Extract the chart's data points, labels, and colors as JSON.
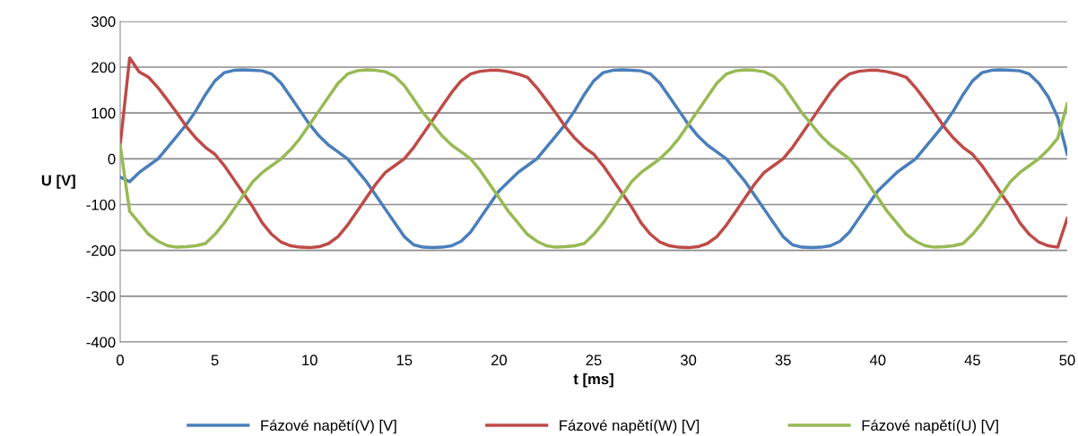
{
  "chart_data": {
    "type": "line",
    "xlabel": "t [ms]",
    "ylabel": "U [V]",
    "x": [
      0,
      0.5,
      1,
      1.5,
      2,
      2.5,
      3,
      3.5,
      4,
      4.5,
      5,
      5.5,
      6,
      6.5,
      7,
      7.5,
      8,
      8.5,
      9,
      9.5,
      10,
      10.5,
      11,
      11.5,
      12,
      12.5,
      13,
      13.5,
      14,
      14.5,
      15,
      15.5,
      16,
      16.5,
      17,
      17.5,
      18,
      18.5,
      19,
      19.5,
      20,
      20.5,
      21,
      21.5,
      22,
      22.5,
      23,
      23.5,
      24,
      24.5,
      25,
      25.5,
      26,
      26.5,
      27,
      27.5,
      28,
      28.5,
      29,
      29.5,
      30,
      30.5,
      31,
      31.5,
      32,
      32.5,
      33,
      33.5,
      34,
      34.5,
      35,
      35.5,
      36,
      36.5,
      37,
      37.5,
      38,
      38.5,
      39,
      39.5,
      40,
      40.5,
      41,
      41.5,
      42,
      42.5,
      43,
      43.5,
      44,
      44.5,
      45,
      45.5,
      46,
      46.5,
      47,
      47.5,
      48,
      48.5,
      49,
      49.5,
      50
    ],
    "series": [
      {
        "name": "Fázové napětí(V) [V]",
        "color": "#4a7ebb",
        "values": [
          -40,
          -50,
          -30,
          -15,
          0,
          25,
          50,
          75,
          105,
          140,
          170,
          188,
          193,
          194,
          193,
          192,
          185,
          165,
          135,
          105,
          75,
          50,
          30,
          15,
          0,
          -25,
          -50,
          -80,
          -110,
          -140,
          -170,
          -188,
          -193,
          -194,
          -193,
          -190,
          -180,
          -160,
          -130,
          -100,
          -70,
          -50,
          -30,
          -15,
          0,
          25,
          50,
          75,
          105,
          140,
          170,
          188,
          193,
          194,
          193,
          192,
          185,
          165,
          135,
          105,
          75,
          50,
          30,
          15,
          0,
          -25,
          -50,
          -80,
          -110,
          -140,
          -170,
          -188,
          -193,
          -194,
          -193,
          -190,
          -180,
          -160,
          -130,
          -100,
          -70,
          -50,
          -30,
          -15,
          0,
          25,
          50,
          75,
          105,
          140,
          170,
          188,
          193,
          194,
          193,
          192,
          185,
          165,
          135,
          90,
          10
        ]
      },
      {
        "name": "Fázové napětí(W) [V]",
        "color": "#be4b48",
        "values": [
          30,
          220,
          190,
          178,
          155,
          128,
          100,
          70,
          45,
          25,
          10,
          -15,
          -45,
          -75,
          -105,
          -140,
          -165,
          -182,
          -190,
          -193,
          -194,
          -192,
          -185,
          -170,
          -145,
          -115,
          -85,
          -55,
          -30,
          -15,
          0,
          25,
          55,
          85,
          115,
          145,
          170,
          185,
          191,
          193,
          193,
          190,
          185,
          178,
          155,
          128,
          100,
          70,
          45,
          25,
          10,
          -15,
          -45,
          -75,
          -105,
          -140,
          -165,
          -182,
          -190,
          -193,
          -194,
          -192,
          -185,
          -170,
          -145,
          -115,
          -85,
          -55,
          -30,
          -15,
          0,
          25,
          55,
          85,
          115,
          145,
          170,
          185,
          191,
          193,
          193,
          190,
          185,
          178,
          155,
          128,
          100,
          70,
          45,
          25,
          10,
          -15,
          -45,
          -75,
          -105,
          -140,
          -165,
          -182,
          -190,
          -193,
          -130
        ]
      },
      {
        "name": "Fázové napětí(U) [V]",
        "color": "#98b954",
        "values": [
          30,
          -115,
          -140,
          -165,
          -180,
          -190,
          -193,
          -192,
          -190,
          -185,
          -165,
          -140,
          -110,
          -80,
          -50,
          -30,
          -15,
          0,
          20,
          45,
          75,
          105,
          135,
          165,
          185,
          192,
          194,
          193,
          190,
          180,
          160,
          130,
          100,
          75,
          50,
          30,
          15,
          0,
          -25,
          -55,
          -85,
          -115,
          -140,
          -165,
          -180,
          -190,
          -193,
          -192,
          -190,
          -185,
          -165,
          -140,
          -110,
          -80,
          -50,
          -30,
          -15,
          0,
          20,
          45,
          75,
          105,
          135,
          165,
          185,
          192,
          194,
          193,
          190,
          180,
          160,
          130,
          100,
          75,
          50,
          30,
          15,
          0,
          -25,
          -55,
          -85,
          -115,
          -140,
          -165,
          -180,
          -190,
          -193,
          -192,
          -190,
          -185,
          -165,
          -140,
          -110,
          -80,
          -50,
          -30,
          -15,
          0,
          20,
          45,
          120
        ]
      }
    ],
    "xlim": [
      0,
      50
    ],
    "xticks": [
      0,
      5,
      10,
      15,
      20,
      25,
      30,
      35,
      40,
      45,
      50
    ],
    "ylim": [
      -400,
      300
    ],
    "yticks": [
      -400,
      -300,
      -200,
      -100,
      0,
      100,
      200,
      300
    ],
    "grid": "y",
    "legend": "bottom",
    "marker": "none",
    "line_style": "solid"
  }
}
